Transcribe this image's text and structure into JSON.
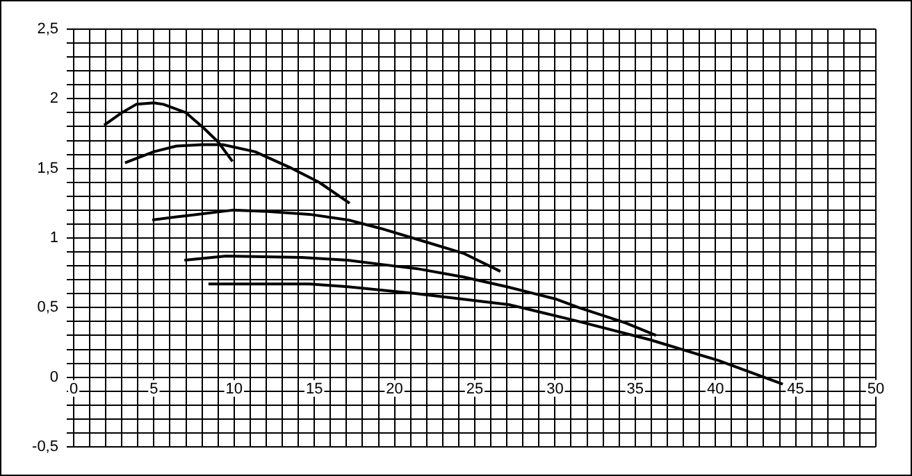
{
  "chart_data": {
    "type": "line",
    "marker": "none",
    "line_style": "solid",
    "grid": true,
    "legend": false,
    "xlim": [
      0,
      50
    ],
    "ylim": [
      -0.5,
      2.5
    ],
    "xticks": [
      0,
      {
        "value": 1,
        "label": null
      },
      {
        "value": 2,
        "label": null
      },
      {
        "value": 3,
        "label": null
      },
      {
        "value": 4,
        "label": null
      },
      5,
      {
        "value": 6,
        "label": null
      },
      {
        "value": 7,
        "label": null
      },
      {
        "value": 8,
        "label": null
      },
      {
        "value": 9,
        "label": null
      },
      10,
      {
        "value": 11,
        "label": null
      },
      {
        "value": 12,
        "label": null
      },
      {
        "value": 13,
        "label": null
      },
      {
        "value": 14,
        "label": null
      },
      15,
      {
        "value": 16,
        "label": null
      },
      {
        "value": 17,
        "label": null
      },
      {
        "value": 18,
        "label": null
      },
      {
        "value": 19,
        "label": null
      },
      20,
      {
        "value": 21,
        "label": null
      },
      {
        "value": 22,
        "label": null
      },
      {
        "value": 23,
        "label": null
      },
      {
        "value": 24,
        "label": null
      },
      25,
      {
        "value": 26,
        "label": null
      },
      {
        "value": 27,
        "label": null
      },
      {
        "value": 28,
        "label": null
      },
      {
        "value": 29,
        "label": null
      },
      30,
      {
        "value": 31,
        "label": null
      },
      {
        "value": 32,
        "label": null
      },
      {
        "value": 33,
        "label": null
      },
      {
        "value": 34,
        "label": null
      },
      35,
      {
        "value": 36,
        "label": null
      },
      {
        "value": 37,
        "label": null
      },
      {
        "value": 38,
        "label": null
      },
      {
        "value": 39,
        "label": null
      },
      40,
      {
        "value": 41,
        "label": null
      },
      {
        "value": 42,
        "label": null
      },
      {
        "value": 43,
        "label": null
      },
      {
        "value": 44,
        "label": null
      },
      45,
      {
        "value": 46,
        "label": null
      },
      {
        "value": 47,
        "label": null
      },
      {
        "value": 48,
        "label": null
      },
      {
        "value": 49,
        "label": null
      },
      50
    ],
    "yticks": [
      {
        "value": -0.5,
        "label": "-0,5"
      },
      {
        "value": -0.4,
        "label": null
      },
      {
        "value": -0.3,
        "label": null
      },
      {
        "value": -0.2,
        "label": null
      },
      {
        "value": -0.1,
        "label": null
      },
      0,
      {
        "value": 0.1,
        "label": null
      },
      {
        "value": 0.2,
        "label": null
      },
      {
        "value": 0.3,
        "label": null
      },
      {
        "value": 0.4,
        "label": null
      },
      {
        "value": 0.5,
        "label": "0,5"
      },
      {
        "value": 0.6,
        "label": null
      },
      {
        "value": 0.7,
        "label": null
      },
      {
        "value": 0.8,
        "label": null
      },
      {
        "value": 0.9,
        "label": null
      },
      1,
      {
        "value": 1.1,
        "label": null
      },
      {
        "value": 1.2,
        "label": null
      },
      {
        "value": 1.3,
        "label": null
      },
      {
        "value": 1.4,
        "label": null
      },
      {
        "value": 1.5,
        "label": "1,5"
      },
      {
        "value": 1.6,
        "label": null
      },
      {
        "value": 1.7,
        "label": null
      },
      {
        "value": 1.8,
        "label": null
      },
      {
        "value": 1.9,
        "label": null
      },
      2,
      {
        "value": 2.1,
        "label": null
      },
      {
        "value": 2.2,
        "label": null
      },
      {
        "value": 2.3,
        "label": null
      },
      {
        "value": 2.4,
        "label": null
      },
      {
        "value": 2.5,
        "label": "2,5"
      }
    ],
    "series": [
      {
        "color": "#000000",
        "x": [
          1.9,
          3,
          3.9,
          5,
          5.6,
          7,
          8.1,
          9,
          9.9
        ],
        "values": [
          1.81,
          1.9,
          1.96,
          1.97,
          1.96,
          1.9,
          1.79,
          1.69,
          1.55
        ]
      },
      {
        "color": "#000000",
        "x": [
          3.2,
          5,
          6.4,
          8,
          9.3,
          11.3,
          13.6,
          15.3,
          17.2
        ],
        "values": [
          1.54,
          1.62,
          1.66,
          1.67,
          1.67,
          1.62,
          1.5,
          1.4,
          1.25
        ]
      },
      {
        "color": "#000000",
        "x": [
          4.9,
          7,
          9.9,
          12.1,
          14.7,
          17.1,
          19.1,
          22,
          24.3,
          26.6
        ],
        "values": [
          1.13,
          1.16,
          1.2,
          1.19,
          1.17,
          1.13,
          1.07,
          0.97,
          0.89,
          0.76
        ]
      },
      {
        "color": "#000000",
        "x": [
          6.9,
          9.5,
          14.2,
          17.1,
          19.9,
          21.4,
          24.3,
          27,
          30.1,
          31.5,
          34.4,
          36.3
        ],
        "values": [
          0.84,
          0.87,
          0.86,
          0.84,
          0.8,
          0.78,
          0.72,
          0.65,
          0.56,
          0.5,
          0.39,
          0.3
        ]
      },
      {
        "color": "#000000",
        "x": [
          8.4,
          14.7,
          17.1,
          21.4,
          27.2,
          31.5,
          35.9,
          40.2,
          44.2
        ],
        "values": [
          0.67,
          0.67,
          0.65,
          0.6,
          0.52,
          0.4,
          0.27,
          0.12,
          -0.05
        ]
      }
    ]
  }
}
